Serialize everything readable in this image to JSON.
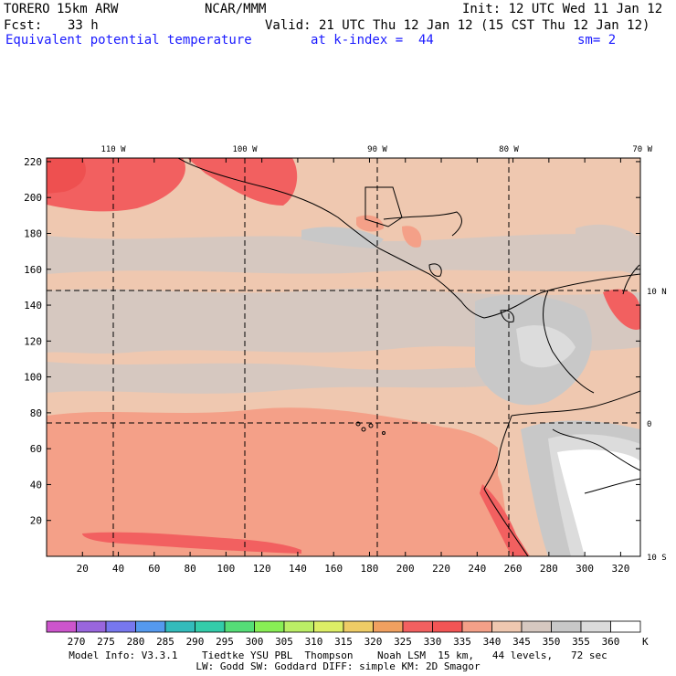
{
  "header": {
    "model": "TORERO",
    "resolution": "15km ARW",
    "center": "NCAR/MMM",
    "init": "Init: 12 UTC Wed 11 Jan 12",
    "fcst_label": "Fcst:",
    "fcst_value": "33 h",
    "valid": "Valid: 21 UTC Thu 12 Jan 12 (15 CST Thu 12 Jan 12)",
    "field": "Equivalent potential temperature",
    "level": "at k-index =  44",
    "smoothing": "sm= 2"
  },
  "map": {
    "lon_labels": [
      "110 W",
      "100 W",
      "90 W",
      "80 W",
      "70 W"
    ],
    "lat_labels": [
      "10 N",
      "0",
      "10 S"
    ],
    "y_ticks": [
      "220",
      "200",
      "180",
      "160",
      "140",
      "120",
      "100",
      "80",
      "60",
      "40",
      "20"
    ],
    "x_ticks": [
      "20",
      "40",
      "60",
      "80",
      "100",
      "120",
      "140",
      "160",
      "180",
      "200",
      "220",
      "240",
      "260",
      "280",
      "300",
      "320"
    ]
  },
  "colorbar": {
    "levels": [
      "270",
      "275",
      "280",
      "285",
      "290",
      "295",
      "300",
      "305",
      "310",
      "315",
      "320",
      "325",
      "330",
      "335",
      "340",
      "345",
      "350",
      "355",
      "360"
    ],
    "unit": "K",
    "colors": [
      "#cc55cc",
      "#9966dd",
      "#7777ee",
      "#5599ee",
      "#33bbbb",
      "#33ccaa",
      "#55dd77",
      "#88ee55",
      "#bbee66",
      "#ddee66",
      "#eecc66",
      "#f0a060",
      "#f26060",
      "#f25555",
      "#f4a088",
      "#efc8b0",
      "#d6c8c0",
      "#c8c8c8",
      "#dcdcdc",
      "#ffffff"
    ]
  },
  "footer": {
    "line1": "Model Info: V3.3.1    Tiedtke YSU PBL  Thompson    Noah LSM  15 km,   44 levels,   72 sec",
    "line2": "LW: Godd SW: Goddard DIFF: simple KM: 2D Smagor"
  }
}
